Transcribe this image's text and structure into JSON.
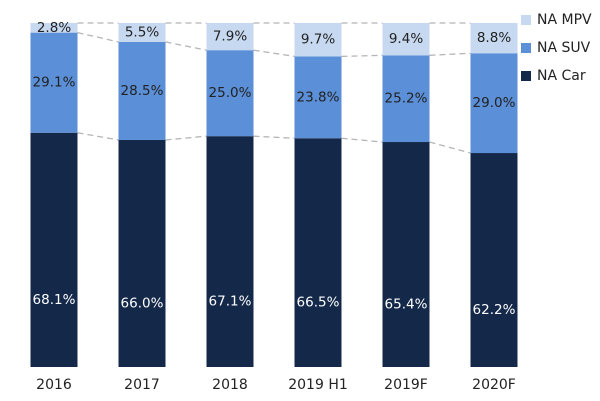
{
  "chart_data": {
    "type": "stacked_bar",
    "categories": [
      "2016",
      "2017",
      "2018",
      "2019 H1",
      "2019F",
      "2020F"
    ],
    "series": [
      {
        "name": "NA Car",
        "color": "#14284a",
        "values": [
          68.1,
          66.0,
          67.1,
          66.5,
          65.4,
          62.2
        ],
        "value_labels": [
          "68.1%",
          "66.0%",
          "67.1%",
          "66.5%",
          "65.4%",
          "62.2%"
        ]
      },
      {
        "name": "NA SUV",
        "color": "#5b8fd7",
        "values": [
          29.1,
          28.5,
          25.0,
          23.8,
          25.2,
          29.0
        ],
        "value_labels": [
          "29.1%",
          "28.5%",
          "25.0%",
          "23.8%",
          "25.2%",
          "29.0%"
        ]
      },
      {
        "name": "NA MPV",
        "color": "#c7d9f0",
        "values": [
          2.8,
          5.5,
          7.9,
          9.7,
          9.4,
          8.8
        ],
        "value_labels": [
          "2.8%",
          "5.5%",
          "7.9%",
          "9.7%",
          "9.4%",
          "8.8%"
        ]
      }
    ],
    "ylim": [
      0,
      100
    ],
    "legend": "right"
  }
}
